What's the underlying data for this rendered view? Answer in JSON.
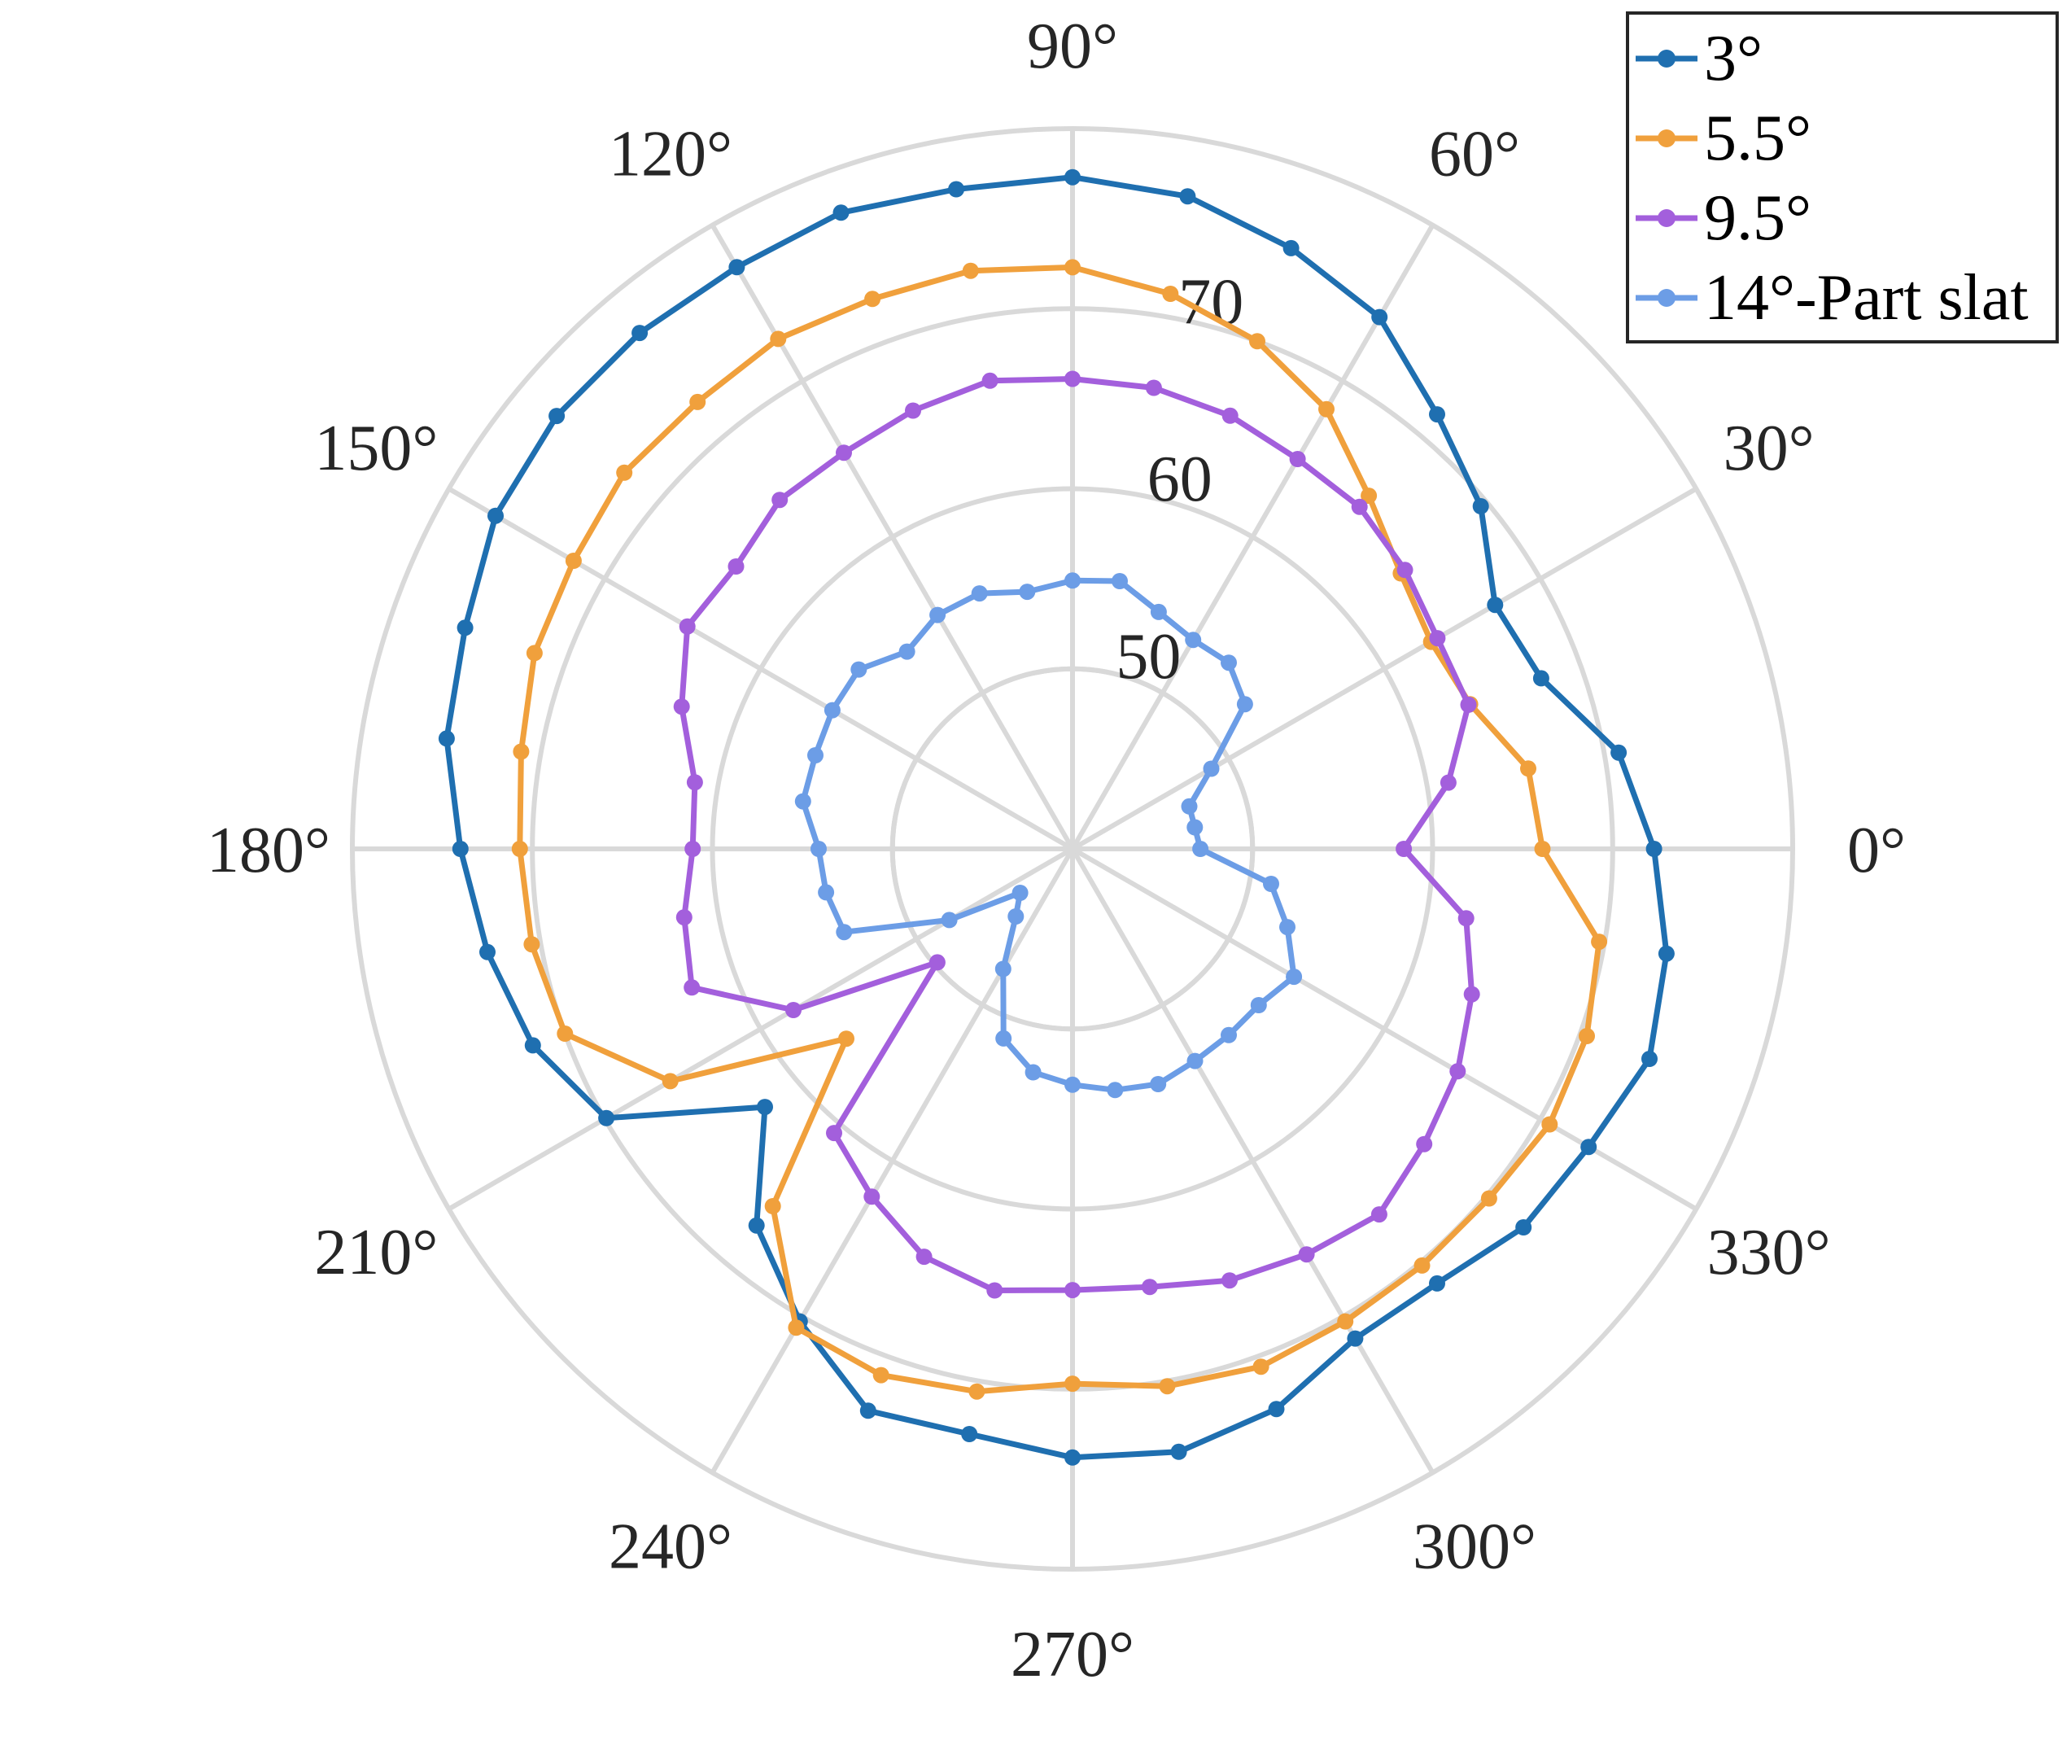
{
  "chart_data": {
    "type": "polar-line",
    "theta_unit": "degrees",
    "theta_ticks": [
      0,
      30,
      60,
      90,
      120,
      150,
      180,
      210,
      240,
      270,
      300,
      330
    ],
    "theta_tick_labels": [
      "0°",
      "30°",
      "60°",
      "90°",
      "120°",
      "150°",
      "180°",
      "210°",
      "240°",
      "270°",
      "300°",
      "330°"
    ],
    "r_ticks": [
      50,
      60,
      70
    ],
    "r_tick_labels": [
      "50",
      "60",
      "70"
    ],
    "r_axis_label_angle_deg": 80,
    "rlim": [
      40,
      80
    ],
    "grid": true,
    "legend_position": "top-right",
    "series": [
      {
        "name": "3°",
        "color": "#1f6fb0",
        "points": [
          [
            0,
            72.3
          ],
          [
            10,
            70.8
          ],
          [
            20,
            67.7
          ],
          [
            30,
            67.1
          ],
          [
            40,
            69.6
          ],
          [
            50,
            71.5
          ],
          [
            60,
            74.1
          ],
          [
            70,
            75.5
          ],
          [
            80,
            76.8
          ],
          [
            90,
            77.3
          ],
          [
            100,
            77.2
          ],
          [
            110,
            77.6
          ],
          [
            120,
            77.3
          ],
          [
            130,
            77.4
          ],
          [
            140,
            77.4
          ],
          [
            150,
            77.0
          ],
          [
            160,
            75.9
          ],
          [
            170,
            75.3
          ],
          [
            180,
            74.0
          ],
          [
            190,
            73.0
          ],
          [
            200,
            71.9
          ],
          [
            210,
            69.9
          ],
          [
            220,
            62.3
          ],
          [
            230,
            67.3
          ],
          [
            240,
            70.3
          ],
          [
            250,
            73.2
          ],
          [
            260,
            73.0
          ],
          [
            270,
            73.8
          ],
          [
            280,
            74.0
          ],
          [
            290,
            73.1
          ],
          [
            300,
            71.4
          ],
          [
            310,
            71.5
          ],
          [
            320,
            72.7
          ],
          [
            330,
            73.1
          ],
          [
            340,
            74.1
          ],
          [
            350,
            73.5
          ]
        ]
      },
      {
        "name": "5.5°",
        "color": "#f0a03c",
        "points": [
          [
            0,
            66.1
          ],
          [
            10,
            65.7
          ],
          [
            20,
            63.5
          ],
          [
            30,
            63.0
          ],
          [
            40,
            63.8
          ],
          [
            50,
            65.6
          ],
          [
            60,
            68.2
          ],
          [
            70,
            70.0
          ],
          [
            80,
            71.3
          ],
          [
            90,
            72.3
          ],
          [
            100,
            72.6
          ],
          [
            110,
            72.5
          ],
          [
            120,
            72.7
          ],
          [
            130,
            72.4
          ],
          [
            140,
            72.5
          ],
          [
            150,
            72.0
          ],
          [
            160,
            71.8
          ],
          [
            170,
            71.1
          ],
          [
            180,
            70.7
          ],
          [
            190,
            70.5
          ],
          [
            200,
            70.0
          ],
          [
            210,
            65.8
          ],
          [
            220,
            56.4
          ],
          [
            230,
            65.9
          ],
          [
            240,
            70.7
          ],
          [
            250,
            71.1
          ],
          [
            260,
            70.6
          ],
          [
            270,
            69.7
          ],
          [
            280,
            70.3
          ],
          [
            290,
            70.6
          ],
          [
            300,
            70.3
          ],
          [
            310,
            70.2
          ],
          [
            320,
            70.2
          ],
          [
            330,
            70.6
          ],
          [
            340,
            70.4
          ],
          [
            350,
            69.7
          ]
        ]
      },
      {
        "name": "9.5°",
        "color": "#a35fdc",
        "points": [
          [
            0,
            58.4
          ],
          [
            10,
            61.2
          ],
          [
            20,
            63.4
          ],
          [
            30,
            63.4
          ],
          [
            40,
            64.1
          ],
          [
            50,
            64.8
          ],
          [
            60,
            65.0
          ],
          [
            70,
            65.6
          ],
          [
            80,
            66.0
          ],
          [
            90,
            66.1
          ],
          [
            100,
            66.4
          ],
          [
            110,
            65.9
          ],
          [
            120,
            65.4
          ],
          [
            130,
            65.3
          ],
          [
            140,
            64.4
          ],
          [
            150,
            64.7
          ],
          [
            160,
            63.1
          ],
          [
            170,
            61.3
          ],
          [
            180,
            61.1
          ],
          [
            190,
            61.9
          ],
          [
            200,
            62.5
          ],
          [
            210,
            57.9
          ],
          [
            220,
            49.8
          ],
          [
            230,
            60.6
          ],
          [
            240,
            62.3
          ],
          [
            250,
            64.1
          ],
          [
            260,
            64.9
          ],
          [
            270,
            64.5
          ],
          [
            280,
            64.7
          ],
          [
            290,
            65.5
          ],
          [
            300,
            66.0
          ],
          [
            310,
            66.5
          ],
          [
            320,
            65.5
          ],
          [
            330,
            64.7
          ],
          [
            340,
            63.6
          ],
          [
            350,
            62.2
          ]
        ]
      },
      {
        "name": "14°-Part slat",
        "color": "#6c9de6",
        "points": [
          [
            0,
            47.1
          ],
          [
            10,
            46.9
          ],
          [
            20,
            46.9
          ],
          [
            30,
            48.9
          ],
          [
            40,
            52.5
          ],
          [
            50,
            53.5
          ],
          [
            60,
            53.4
          ],
          [
            70,
            54.0
          ],
          [
            80,
            55.1
          ],
          [
            90,
            54.9
          ],
          [
            100,
            54.5
          ],
          [
            110,
            55.1
          ],
          [
            120,
            55.0
          ],
          [
            130,
            54.3
          ],
          [
            140,
            55.5
          ],
          [
            150,
            55.4
          ],
          [
            160,
            55.2
          ],
          [
            170,
            55.2
          ],
          [
            180,
            54.1
          ],
          [
            190,
            53.9
          ],
          [
            200,
            53.5
          ],
          [
            210,
            47.9
          ],
          [
            220,
            43.8
          ],
          [
            230,
            44.9
          ],
          [
            240,
            47.7
          ],
          [
            250,
            51.2
          ],
          [
            260,
            52.6
          ],
          [
            270,
            53.1
          ],
          [
            280,
            53.6
          ],
          [
            290,
            53.9
          ],
          [
            300,
            53.6
          ],
          [
            310,
            53.5
          ],
          [
            320,
            53.5
          ],
          [
            330,
            54.2
          ],
          [
            340,
            52.7
          ],
          [
            350,
            51.2
          ]
        ]
      }
    ]
  }
}
